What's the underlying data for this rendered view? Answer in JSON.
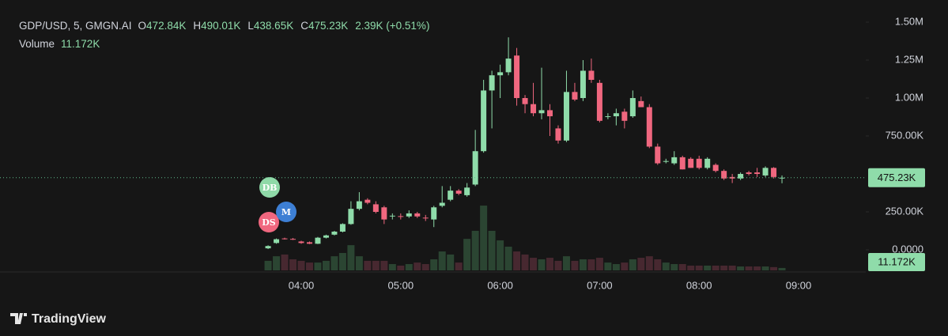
{
  "chart_data": {
    "type": "candlestick",
    "header": {
      "symbol": "GDP/USD, 5, GMGN.AI",
      "ohlc": [
        {
          "key": "O",
          "value": "472.84K"
        },
        {
          "key": "H",
          "value": "490.01K"
        },
        {
          "key": "L",
          "value": "438.65K"
        },
        {
          "key": "C",
          "value": "475.23K"
        }
      ],
      "change": "2.39K (+0.51%)",
      "volume_title": "Volume"
    },
    "x": [
      "03:40",
      "03:45",
      "03:50",
      "03:55",
      "04:00",
      "04:05",
      "04:10",
      "04:15",
      "04:20",
      "04:25",
      "04:30",
      "04:35",
      "04:40",
      "04:45",
      "04:50",
      "04:55",
      "05:00",
      "05:05",
      "05:10",
      "05:15",
      "05:20",
      "05:25",
      "05:30",
      "05:35",
      "05:40",
      "05:45",
      "05:50",
      "05:55",
      "06:00",
      "06:05",
      "06:10",
      "06:15",
      "06:20",
      "06:25",
      "06:30",
      "06:35",
      "06:40",
      "06:45",
      "06:50",
      "06:55",
      "07:00",
      "07:05",
      "07:10",
      "07:15",
      "07:20",
      "07:25",
      "07:30",
      "07:35",
      "07:40",
      "07:45",
      "07:50",
      "07:55",
      "08:00",
      "08:05",
      "08:10",
      "08:15",
      "08:20",
      "08:25",
      "08:30",
      "08:35",
      "08:40",
      "08:45",
      "08:50"
    ],
    "open": [
      10000,
      45000,
      75000,
      72000,
      55000,
      50000,
      40000,
      80000,
      100000,
      120000,
      170000,
      270000,
      330000,
      300000,
      280000,
      220000,
      222000,
      220000,
      240000,
      212000,
      200000,
      290000,
      330000,
      390000,
      360000,
      430000,
      650000,
      1050000,
      1150000,
      1170000,
      1280000,
      1000000,
      960000,
      900000,
      920000,
      800000,
      720000,
      1040000,
      1000000,
      1180000,
      1100000,
      880000,
      880000,
      910000,
      880000,
      980000,
      940000,
      680000,
      580000,
      570000,
      610000,
      600000,
      600000,
      540000,
      560000,
      520000,
      480000,
      470000,
      510000,
      510000,
      490000,
      540000,
      472840
    ],
    "high": [
      30000,
      75000,
      80000,
      78000,
      60000,
      55000,
      85000,
      100000,
      125000,
      175000,
      320000,
      380000,
      340000,
      320000,
      290000,
      240000,
      240000,
      260000,
      250000,
      230000,
      290000,
      420000,
      420000,
      400000,
      440000,
      790000,
      1120000,
      1180000,
      1220000,
      1400000,
      1330000,
      1020000,
      1100000,
      1200000,
      960000,
      820000,
      1180000,
      1100000,
      1250000,
      1260000,
      1120000,
      900000,
      930000,
      930000,
      1050000,
      1010000,
      960000,
      700000,
      600000,
      650000,
      620000,
      610000,
      620000,
      610000,
      570000,
      530000,
      500000,
      510000,
      520000,
      540000,
      550000,
      545000,
      490010
    ],
    "low": [
      5000,
      40000,
      68000,
      65000,
      40000,
      38000,
      38000,
      75000,
      95000,
      115000,
      165000,
      260000,
      300000,
      240000,
      170000,
      200000,
      200000,
      210000,
      210000,
      190000,
      150000,
      280000,
      320000,
      360000,
      350000,
      420000,
      640000,
      800000,
      1000000,
      1150000,
      950000,
      900000,
      880000,
      860000,
      750000,
      700000,
      710000,
      980000,
      980000,
      1100000,
      840000,
      860000,
      820000,
      800000,
      870000,
      940000,
      670000,
      560000,
      570000,
      560000,
      530000,
      540000,
      530000,
      530000,
      510000,
      460000,
      440000,
      460000,
      490000,
      480000,
      480000,
      470000,
      438650
    ],
    "close": [
      25000,
      70000,
      70000,
      68000,
      45000,
      40000,
      80000,
      95000,
      120000,
      170000,
      270000,
      320000,
      310000,
      250000,
      200000,
      225000,
      220000,
      240000,
      220000,
      210000,
      280000,
      310000,
      390000,
      370000,
      410000,
      650000,
      1050000,
      1150000,
      1170000,
      1260000,
      1000000,
      960000,
      900000,
      920000,
      880000,
      720000,
      1040000,
      990000,
      1180000,
      1120000,
      850000,
      880000,
      900000,
      850000,
      1000000,
      940000,
      680000,
      570000,
      585000,
      610000,
      530000,
      540000,
      540000,
      600000,
      520000,
      470000,
      470000,
      500000,
      500000,
      500000,
      540000,
      480000,
      475230
    ],
    "volume": [
      44000,
      65000,
      73000,
      51000,
      44000,
      36000,
      36000,
      44000,
      65000,
      80000,
      116000,
      65000,
      44000,
      44000,
      44000,
      29000,
      22000,
      29000,
      36000,
      29000,
      51000,
      87000,
      73000,
      36000,
      145000,
      182000,
      298000,
      182000,
      138000,
      109000,
      87000,
      73000,
      58000,
      51000,
      58000,
      44000,
      65000,
      44000,
      51000,
      51000,
      58000,
      36000,
      29000,
      36000,
      51000,
      58000,
      65000,
      51000,
      36000,
      29000,
      29000,
      22000,
      22000,
      22000,
      22000,
      22000,
      22000,
      18000,
      18000,
      18000,
      18000,
      15000,
      11172
    ],
    "ylim": [
      -151000,
      1646000
    ],
    "yticks": [
      {
        "value": 1500000,
        "label": "1.50M"
      },
      {
        "value": 1250000,
        "label": "1.25M"
      },
      {
        "value": 1000000,
        "label": "1.00M"
      },
      {
        "value": 750000,
        "label": "750.00K"
      },
      {
        "value": 250000,
        "label": "250.00K"
      },
      {
        "value": 0,
        "label": "0.0000"
      }
    ],
    "volume_ylim": [
      0,
      400000
    ],
    "xticks": [
      "04:00",
      "05:00",
      "06:00",
      "07:00",
      "08:00",
      "09:00"
    ],
    "last_price": {
      "value": 475230,
      "label": "475.23K"
    },
    "last_volume": {
      "value": 11172,
      "label": "11.172K"
    },
    "grid": false,
    "up_color": "#8fdcaa",
    "down_color": "#f0677f",
    "volume_up_color": "#2b4532",
    "volume_down_color": "#472830",
    "markers": [
      "DB",
      "M",
      "DS"
    ],
    "brand": "TradingView"
  }
}
